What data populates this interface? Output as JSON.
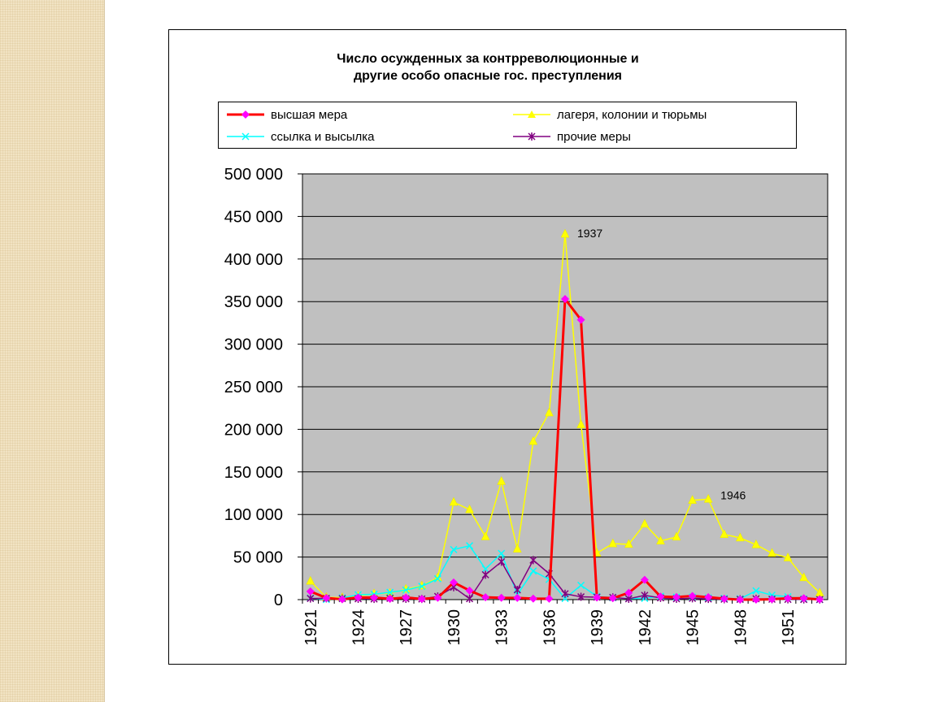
{
  "chart_data": {
    "type": "line",
    "title_line1": "Число осужденных за контрреволюционные и",
    "title_line2": "другие особо опасные гос. преступления",
    "xlabel": "",
    "ylabel": "",
    "ylim": [
      0,
      500000
    ],
    "yticks": [
      0,
      50000,
      100000,
      150000,
      200000,
      250000,
      300000,
      350000,
      400000,
      450000,
      500000
    ],
    "ytick_labels": [
      "0",
      "50 000",
      "100 000",
      "150 000",
      "200 000",
      "250 000",
      "300 000",
      "350 000",
      "400 000",
      "450 000",
      "500 000"
    ],
    "x": [
      1921,
      1922,
      1923,
      1924,
      1925,
      1926,
      1927,
      1928,
      1929,
      1930,
      1931,
      1932,
      1933,
      1934,
      1935,
      1936,
      1937,
      1938,
      1939,
      1940,
      1941,
      1942,
      1943,
      1944,
      1945,
      1946,
      1947,
      1948,
      1949,
      1950,
      1951,
      1952,
      1953
    ],
    "xtick_labels": [
      "1921",
      "1924",
      "1927",
      "1930",
      "1933",
      "1936",
      "1939",
      "1942",
      "1945",
      "1948",
      "1951"
    ],
    "plot_background": "#c0c0c0",
    "grid": true,
    "legend_position": "top",
    "series": [
      {
        "name": "высшая мера",
        "color": "#ff0000",
        "marker": "diamond",
        "marker_color": "#ff00ff",
        "width": 3,
        "values": [
          9701,
          1962,
          414,
          2550,
          2433,
          990,
          2363,
          869,
          2109,
          20201,
          10651,
          2728,
          2154,
          2056,
          1229,
          1118,
          353074,
          328618,
          2552,
          1649,
          8011,
          23278,
          3579,
          3029,
          4252,
          2896,
          1105,
          0,
          0,
          475,
          1609,
          1612,
          198
        ]
      },
      {
        "name": "лагеря, колонии и тюрьмы",
        "color": "#ffff00",
        "marker": "triangle",
        "marker_color": "#ffff00",
        "width": 1.5,
        "values": [
          21724,
          2656,
          2336,
          4151,
          6851,
          7547,
          12267,
          16211,
          25853,
          114443,
          105683,
          73946,
          138903,
          59451,
          185846,
          219418,
          429311,
          205509,
          54666,
          65727,
          65000,
          88809,
          68887,
          73610,
          116681,
          117943,
          76581,
          72552,
          64509,
          54466,
          49142,
          25824,
          7894
        ]
      },
      {
        "name": "ссылка и высылка",
        "color": "#00ffff",
        "marker": "x",
        "marker_color": "#00ffff",
        "width": 1.5,
        "values": [
          1817,
          166,
          2044,
          5724,
          6274,
          8571,
          11235,
          15640,
          24517,
          58816,
          63269,
          36017,
          54262,
          5994,
          33601,
          23719,
          1366,
          16842,
          3783,
          2142,
          1200,
          1500,
          4000,
          3000,
          3000,
          2000,
          1500,
          1000,
          10316,
          5225,
          3425,
          773,
          38
        ]
      },
      {
        "name": "прочие меры",
        "color": "#800080",
        "marker": "star",
        "marker_color": "#800080",
        "width": 1.5,
        "values": [
          1370,
          1500,
          1200,
          1000,
          800,
          1500,
          1000,
          800,
          3741,
          14609,
          1093,
          29228,
          44463,
          11430,
          46400,
          30415,
          6914,
          3289,
          2888,
          2600,
          1000,
          5000,
          2000,
          1000,
          1500,
          800,
          500,
          300,
          1000,
          500,
          300,
          200,
          100
        ]
      }
    ],
    "annotations": [
      {
        "text": "1937",
        "x": 1937,
        "y": 429311
      },
      {
        "text": "1946",
        "x": 1946,
        "y": 117943
      }
    ]
  }
}
